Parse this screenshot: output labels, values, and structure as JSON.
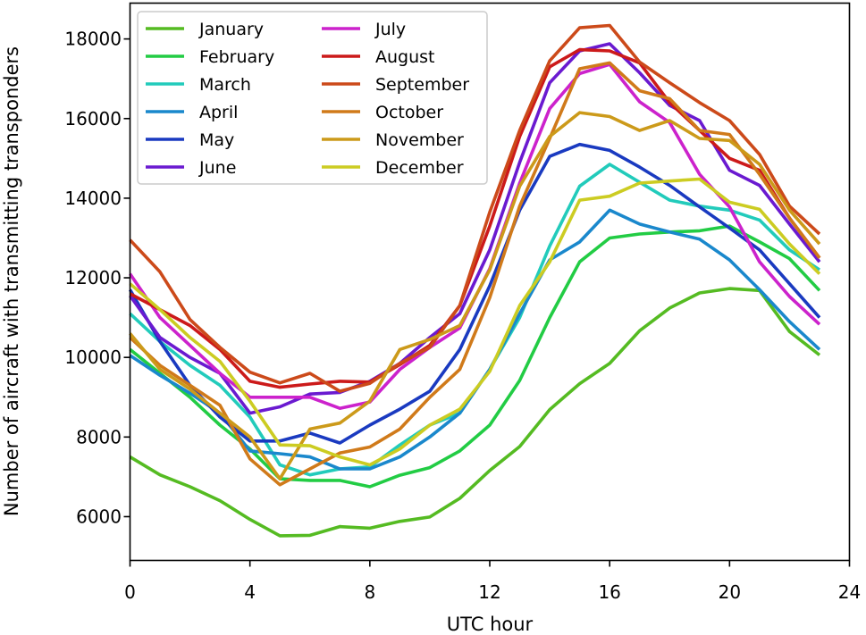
{
  "chart_data": {
    "type": "line",
    "title": "",
    "xlabel": "UTC hour",
    "ylabel": "Number of aircraft with transmitting transponders",
    "xlim": [
      0,
      24
    ],
    "ylim": [
      4900,
      18900
    ],
    "xticks": [
      0,
      4,
      8,
      12,
      16,
      20,
      24
    ],
    "yticks": [
      6000,
      8000,
      10000,
      12000,
      14000,
      16000,
      18000
    ],
    "grid": false,
    "legend": "top-left, two columns",
    "x": [
      0,
      1,
      2,
      3,
      4,
      5,
      6,
      7,
      8,
      9,
      10,
      11,
      12,
      13,
      14,
      15,
      16,
      17,
      18,
      19,
      20,
      21,
      22,
      23
    ],
    "series": [
      {
        "name": "January",
        "color": "#55bb22",
        "values": [
          7500,
          7050,
          6750,
          6400,
          5930,
          5520,
          5530,
          5750,
          5710,
          5880,
          5990,
          6460,
          7160,
          7760,
          8690,
          9340,
          9850,
          10670,
          11240,
          11620,
          11730,
          11680,
          10650,
          10060
        ]
      },
      {
        "name": "February",
        "color": "#22cc44",
        "values": [
          10200,
          9600,
          9000,
          8300,
          7700,
          6950,
          6910,
          6910,
          6750,
          7040,
          7230,
          7650,
          8300,
          9420,
          11000,
          12400,
          13000,
          13100,
          13150,
          13180,
          13300,
          12900,
          12480,
          11680
        ]
      },
      {
        "name": "March",
        "color": "#22cbbb",
        "values": [
          11100,
          10400,
          9800,
          9300,
          8500,
          7300,
          7050,
          7200,
          7250,
          7800,
          8300,
          8600,
          9700,
          11000,
          12800,
          14300,
          14850,
          14400,
          13950,
          13800,
          13700,
          13450,
          12700,
          12200
        ]
      },
      {
        "name": "April",
        "color": "#1a88cc",
        "values": [
          10050,
          9550,
          9100,
          8600,
          7650,
          7580,
          7500,
          7200,
          7200,
          7500,
          8000,
          8600,
          9700,
          11100,
          12450,
          12900,
          13700,
          13350,
          13150,
          12970,
          12450,
          11700,
          10900,
          10200
        ]
      },
      {
        "name": "May",
        "color": "#1a3ac0",
        "values": [
          11700,
          10400,
          9300,
          8500,
          7900,
          7900,
          8100,
          7850,
          8300,
          8700,
          9150,
          10200,
          11800,
          13700,
          15050,
          15350,
          15200,
          14780,
          14320,
          13780,
          13250,
          12700,
          11850,
          11000
        ]
      },
      {
        "name": "June",
        "color": "#6a1ad0",
        "values": [
          11550,
          10500,
          10000,
          9600,
          8600,
          8760,
          9080,
          9120,
          9400,
          9850,
          10500,
          11100,
          12700,
          14900,
          16900,
          17700,
          17880,
          17150,
          16330,
          15950,
          14700,
          14320,
          13350,
          12400
        ]
      },
      {
        "name": "July",
        "color": "#cc22cc",
        "values": [
          12100,
          11000,
          10300,
          9600,
          9000,
          9000,
          9000,
          8720,
          8880,
          9700,
          10250,
          10740,
          12230,
          14380,
          16250,
          17130,
          17360,
          16420,
          15900,
          14600,
          13780,
          12400,
          11530,
          10830
        ]
      },
      {
        "name": "August",
        "color": "#cc1a1a",
        "values": [
          11600,
          11200,
          10800,
          10200,
          9400,
          9250,
          9330,
          9400,
          9380,
          9820,
          10300,
          11300,
          13300,
          15550,
          17300,
          17730,
          17700,
          17400,
          16400,
          15700,
          15000,
          14700,
          13500,
          12500
        ]
      },
      {
        "name": "September",
        "color": "#cc4a1a",
        "values": [
          12950,
          12150,
          10950,
          10250,
          9630,
          9360,
          9600,
          9150,
          9350,
          9850,
          10250,
          11300,
          13650,
          15700,
          17450,
          18280,
          18340,
          17420,
          16900,
          16400,
          15950,
          15100,
          13800,
          13100
        ]
      },
      {
        "name": "October",
        "color": "#d07a1a",
        "values": [
          10500,
          9800,
          9300,
          8800,
          7450,
          6800,
          7200,
          7600,
          7750,
          8200,
          9000,
          9700,
          11500,
          13800,
          15500,
          17250,
          17400,
          16700,
          16500,
          15700,
          15600,
          14600,
          13500,
          12500
        ]
      },
      {
        "name": "November",
        "color": "#cc9a1a",
        "values": [
          10600,
          9700,
          9200,
          8600,
          8000,
          6950,
          8200,
          8350,
          8900,
          10200,
          10450,
          10800,
          12200,
          14300,
          15550,
          16150,
          16050,
          15700,
          15950,
          15500,
          15450,
          14850,
          13700,
          12850
        ]
      },
      {
        "name": "December",
        "color": "#cccc22",
        "values": [
          11850,
          11200,
          10500,
          9900,
          8900,
          7800,
          7780,
          7500,
          7300,
          7700,
          8300,
          8700,
          9650,
          11300,
          12400,
          13950,
          14050,
          14380,
          14430,
          14480,
          13900,
          13720,
          12850,
          12100
        ]
      }
    ]
  }
}
